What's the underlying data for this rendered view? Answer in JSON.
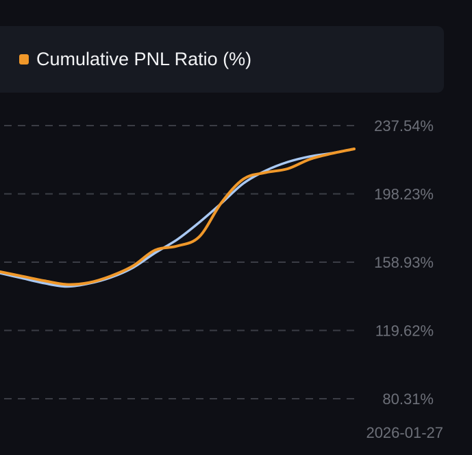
{
  "chart_data": {
    "type": "line",
    "legend": {
      "position": "top",
      "entries": [
        {
          "label": "Cumulative PNL Ratio (%)",
          "color": "#f0982a"
        }
      ]
    },
    "y_ticks": [
      "237.54%",
      "198.23%",
      "158.93%",
      "119.62%",
      "80.31%"
    ],
    "y_tick_values": [
      237.54,
      198.23,
      158.93,
      119.62,
      80.31
    ],
    "ylim": [
      80.31,
      237.54
    ],
    "x_tick_label": "2026-01-27",
    "grid": "horizontal dashed",
    "x": [
      0,
      1,
      2,
      3,
      4,
      5,
      6,
      7,
      8,
      9,
      10,
      11,
      12,
      13,
      14,
      15,
      16
    ],
    "series": [
      {
        "name": "Cumulative PNL Ratio (%)",
        "color": "#f0982a",
        "values": [
          153.4,
          150.8,
          148.2,
          146.1,
          147.1,
          150.9,
          156.7,
          165.8,
          168.2,
          173.5,
          193.1,
          206.8,
          210.5,
          212.7,
          218.2,
          221.5,
          224.1
        ]
      },
      {
        "color": "#a9c8f2",
        "values": [
          152.6,
          149.7,
          146.8,
          144.9,
          146.6,
          150.1,
          155.7,
          164.2,
          171.9,
          181.8,
          192.8,
          204.3,
          211.6,
          216.6,
          219.8,
          221.7,
          224.1
        ]
      }
    ]
  }
}
